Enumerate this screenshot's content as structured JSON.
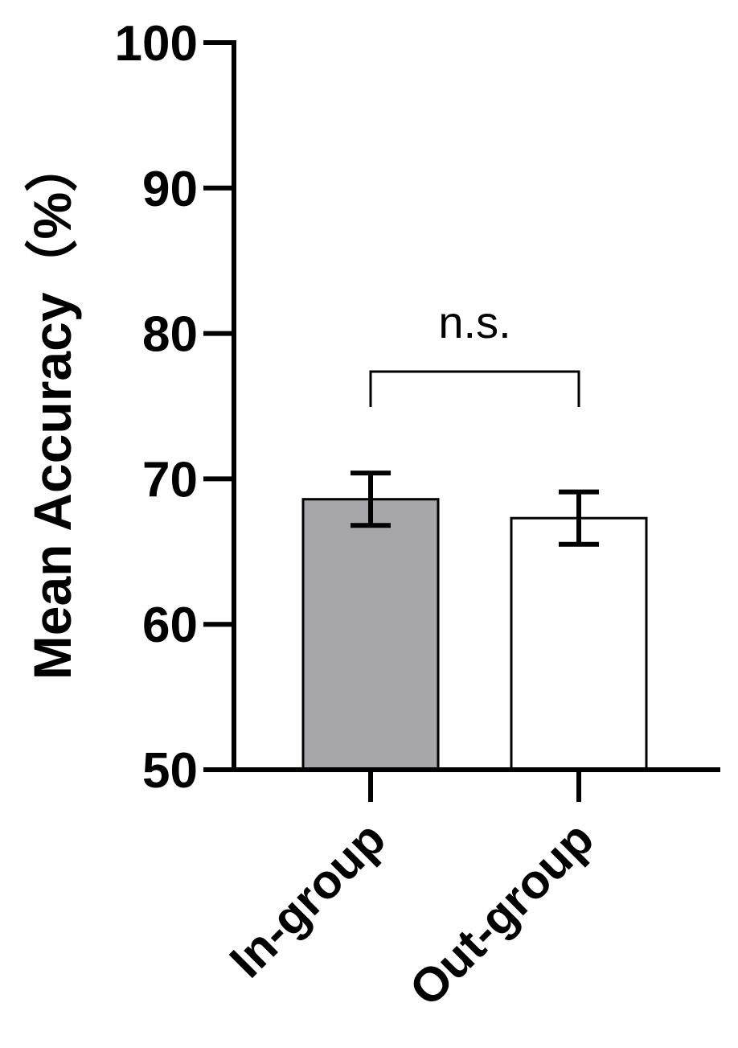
{
  "chart_data": {
    "type": "bar",
    "categories": [
      "In-group",
      "Out-group"
    ],
    "values": [
      68.6,
      67.3
    ],
    "errors": [
      1.8,
      1.8
    ],
    "bar_colors": [
      "#a6a6aa",
      "#ffffff"
    ],
    "ylabel": "Mean Accuracy（%）",
    "xlabel": "",
    "ylim": [
      50,
      100
    ],
    "yticks": [
      50,
      60,
      70,
      80,
      90,
      100
    ],
    "annotations": [
      {
        "text": "n.s.",
        "between": [
          "In-group",
          "Out-group"
        ]
      }
    ],
    "grid": false
  }
}
